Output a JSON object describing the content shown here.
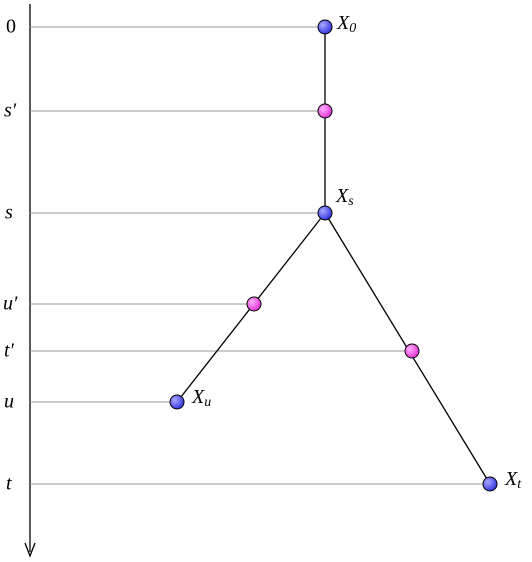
{
  "axis_labels": [
    "0",
    "s′",
    "s",
    "u′",
    "t′",
    "u",
    "t"
  ],
  "nodes": [
    {
      "base": "X",
      "sub": "0"
    },
    {
      "base": "X",
      "sub": "s"
    },
    {
      "base": "X",
      "sub": "u"
    },
    {
      "base": "X",
      "sub": "t"
    }
  ]
}
